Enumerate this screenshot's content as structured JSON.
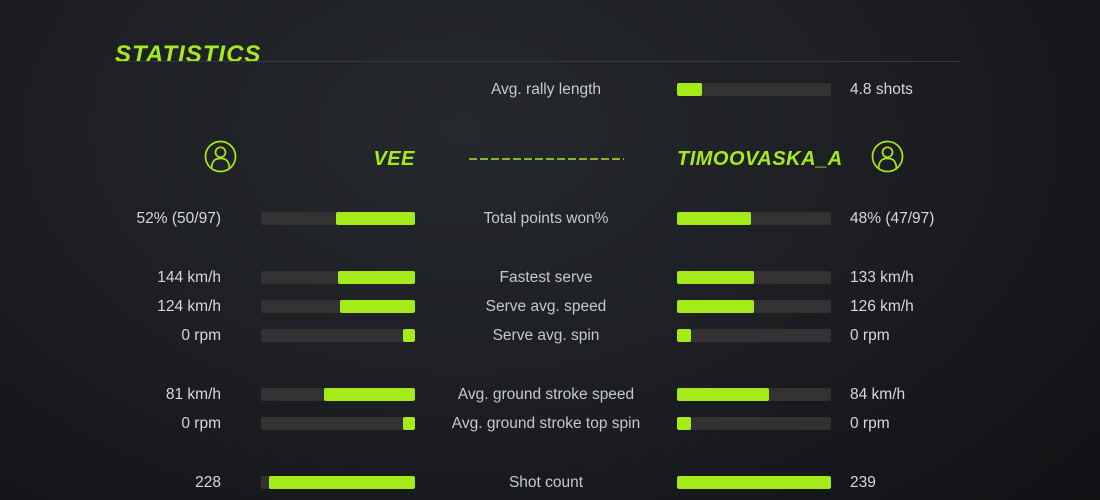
{
  "header": {
    "title": "STATISTICS"
  },
  "colors": {
    "accent": "#a5eb1a",
    "bar_track": "#343132",
    "dashed_divider": "#84b82a",
    "top_line": "#35383d",
    "label_text": "#c6c9cb",
    "value_text": "#d6d8da"
  },
  "players": {
    "left": {
      "name": "VEE",
      "icon": "player-avatar-icon"
    },
    "right": {
      "name": "TIMOOVASKA_A",
      "icon": "player-avatar-icon"
    }
  },
  "rally": {
    "label": "Avg. rally length",
    "value": "4.8 shots",
    "fill_pct": 16
  },
  "stats": {
    "rows": [
      {
        "label": "Total points won%",
        "left_value": "52% (50/97)",
        "right_value": "48% (47/97)",
        "left_fill_pct": 51,
        "right_fill_pct": 48
      },
      {
        "label": "Fastest serve",
        "left_value": "144 km/h",
        "right_value": "133 km/h",
        "left_fill_pct": 50,
        "right_fill_pct": 50
      },
      {
        "label": "Serve avg. speed",
        "left_value": "124 km/h",
        "right_value": "126 km/h",
        "left_fill_pct": 49,
        "right_fill_pct": 50
      },
      {
        "label": "Serve avg. spin",
        "left_value": "0 rpm",
        "right_value": "0 rpm",
        "left_fill_pct": 8,
        "right_fill_pct": 9
      },
      {
        "label": "Avg. ground stroke speed",
        "left_value": "81 km/h",
        "right_value": "84 km/h",
        "left_fill_pct": 59,
        "right_fill_pct": 60
      },
      {
        "label": "Avg. ground stroke top spin",
        "left_value": "0 rpm",
        "right_value": "0 rpm",
        "left_fill_pct": 8,
        "right_fill_pct": 9
      },
      {
        "label": "Shot count",
        "left_value": "228",
        "right_value": "239",
        "left_fill_pct": 95,
        "right_fill_pct": 100
      }
    ]
  }
}
